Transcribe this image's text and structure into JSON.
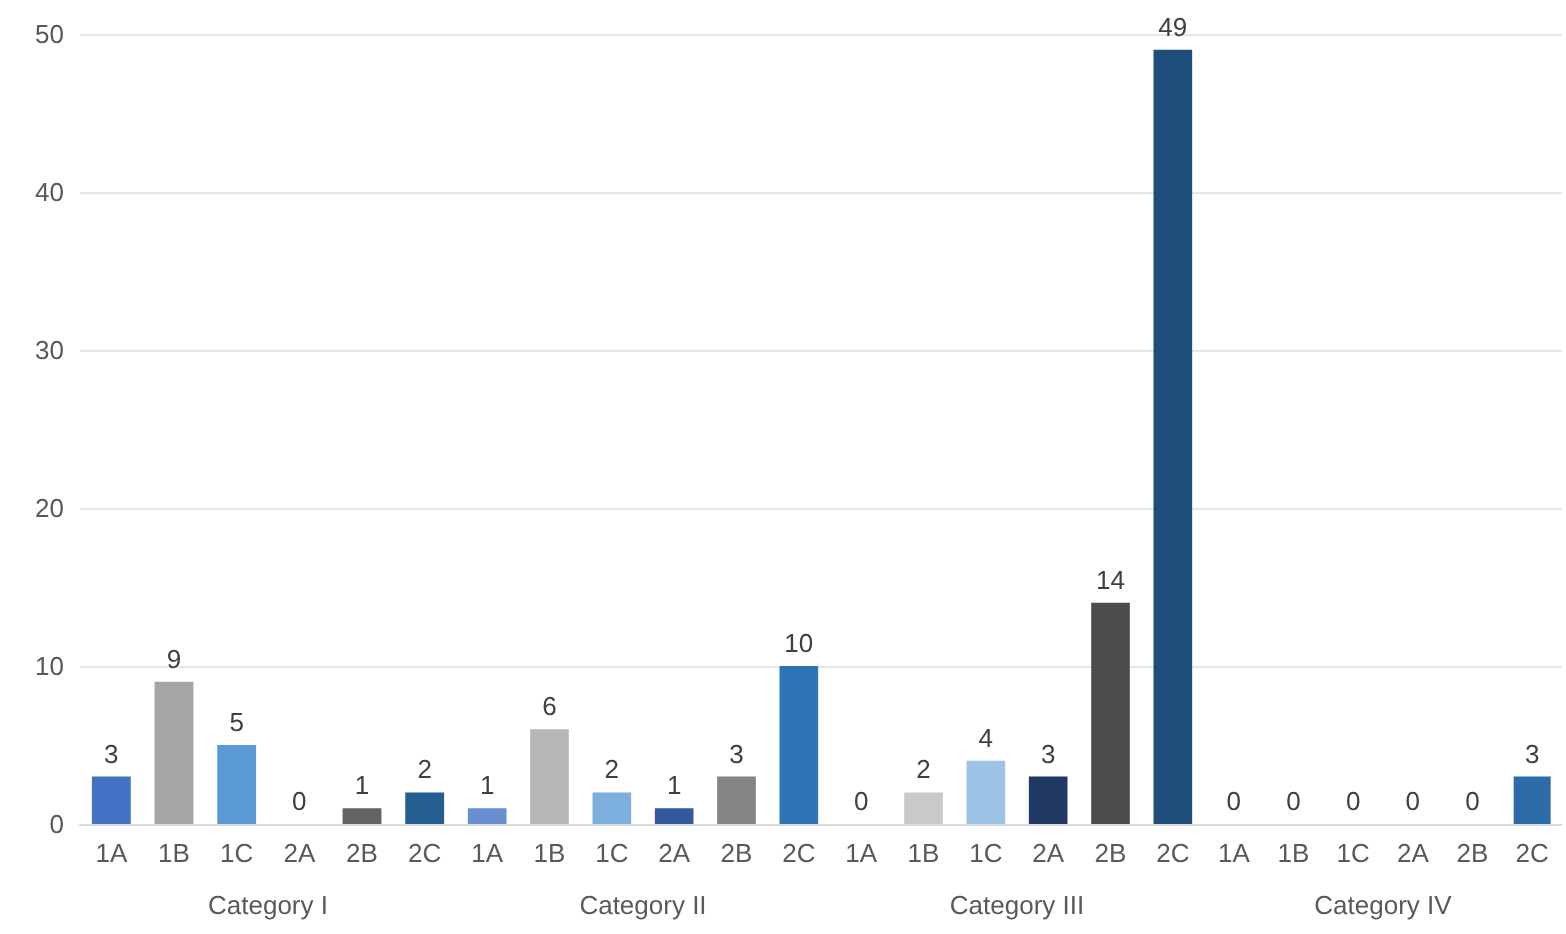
{
  "chart_data": [
    {
      "type": "bar",
      "categories": [
        "1A",
        "1B",
        "1C",
        "2A",
        "2B",
        "2C"
      ],
      "xlabel": "Category I",
      "values": [
        3,
        9,
        5,
        0,
        1,
        2
      ],
      "colors": [
        "#4472c4",
        "#a5a5a5",
        "#5b9bd5",
        "#264478",
        "#636363",
        "#255e91"
      ],
      "data_labels": true,
      "ylim": [
        0,
        50
      ],
      "yticks": [
        0,
        10,
        20,
        30,
        40,
        50
      ],
      "grid": "y"
    },
    {
      "type": "bar",
      "categories": [
        "1A",
        "1B",
        "1C",
        "2A",
        "2B",
        "2C"
      ],
      "xlabel": "Category II",
      "values": [
        1,
        6,
        2,
        1,
        3,
        10
      ],
      "colors": [
        "#698ed0",
        "#b7b7b7",
        "#7cafdd",
        "#335aa1",
        "#848484",
        "#2e75b6"
      ],
      "data_labels": true,
      "ylim": [
        0,
        50
      ],
      "yticks": [
        0,
        10,
        20,
        30,
        40,
        50
      ],
      "grid": "y",
      "tick_labels": "x"
    },
    {
      "type": "bar",
      "categories": [
        "1A",
        "1B",
        "1C",
        "2A",
        "2B",
        "2C"
      ],
      "xlabel": "Category III",
      "values": [
        0,
        2,
        4,
        3,
        14,
        49
      ],
      "colors": [
        "#8faadc",
        "#c9c9c9",
        "#9dc3e6",
        "#203864",
        "#4d4d4d",
        "#1e4e79"
      ],
      "data_labels": true,
      "ylim": [
        0,
        50
      ],
      "yticks": [
        0,
        10,
        20,
        30,
        40,
        50
      ],
      "grid": "y",
      "tick_labels": "x"
    },
    {
      "type": "bar",
      "categories": [
        "1A",
        "1B",
        "1C",
        "2A",
        "2B",
        "2C"
      ],
      "xlabel": "Category IV",
      "values": [
        0,
        0,
        0,
        0,
        0,
        3
      ],
      "colors": [
        "#4472c4",
        "#a5a5a5",
        "#5b9bd5",
        "#264478",
        "#636363",
        "#2e6ca9"
      ],
      "data_labels": true,
      "ylim": [
        0,
        50
      ],
      "yticks": [
        0,
        10,
        20,
        30,
        40,
        50
      ],
      "grid": "y",
      "tick_labels": "x"
    }
  ]
}
